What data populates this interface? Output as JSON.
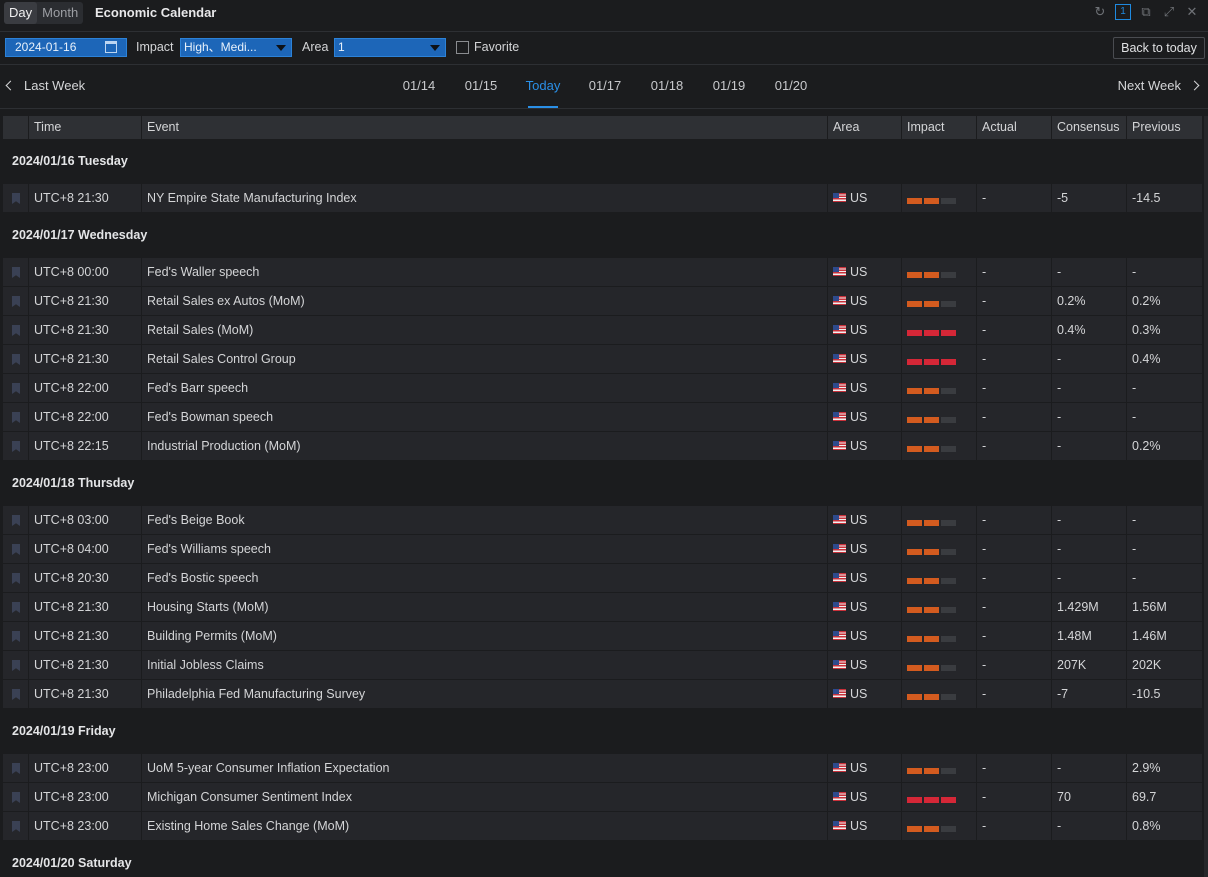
{
  "titlebar": {
    "tab_day": "Day",
    "tab_month": "Month",
    "title": "Economic Calendar",
    "window_badge": "1"
  },
  "filters": {
    "date": "2024-01-16",
    "impact_label": "Impact",
    "impact_value": "High、Medi...",
    "area_label": "Area",
    "area_value": "1",
    "favorite_label": "Favorite",
    "back_to_today": "Back to today"
  },
  "week_nav": {
    "prev": "Last Week",
    "next": "Next Week",
    "days": [
      "01/14",
      "01/15",
      "Today",
      "01/17",
      "01/18",
      "01/19",
      "01/20"
    ],
    "active_day": "Today"
  },
  "columns": {
    "time": "Time",
    "event": "Event",
    "area": "Area",
    "impact": "Impact",
    "actual": "Actual",
    "consensus": "Consensus",
    "previous": "Previous"
  },
  "colors": {
    "accent": "#2a8fe6",
    "impact_medium": "#d35b1f",
    "impact_high": "#d52737"
  },
  "groups": [
    {
      "date": "2024/01/16 Tuesday",
      "rows": [
        {
          "time": "UTC+8 21:30",
          "event": "NY Empire State Manufacturing Index",
          "area": "US",
          "impact": 2,
          "actual": "-",
          "consensus": "-5",
          "previous": "-14.5"
        }
      ]
    },
    {
      "date": "2024/01/17 Wednesday",
      "rows": [
        {
          "time": "UTC+8 00:00",
          "event": "Fed's Waller speech",
          "area": "US",
          "impact": 2,
          "actual": "-",
          "consensus": "-",
          "previous": "-"
        },
        {
          "time": "UTC+8 21:30",
          "event": "Retail Sales ex Autos (MoM)",
          "area": "US",
          "impact": 2,
          "actual": "-",
          "consensus": "0.2%",
          "previous": "0.2%"
        },
        {
          "time": "UTC+8 21:30",
          "event": "Retail Sales (MoM)",
          "area": "US",
          "impact": 3,
          "actual": "-",
          "consensus": "0.4%",
          "previous": "0.3%"
        },
        {
          "time": "UTC+8 21:30",
          "event": "Retail Sales Control Group",
          "area": "US",
          "impact": 3,
          "actual": "-",
          "consensus": "-",
          "previous": "0.4%"
        },
        {
          "time": "UTC+8 22:00",
          "event": "Fed's Barr speech",
          "area": "US",
          "impact": 2,
          "actual": "-",
          "consensus": "-",
          "previous": "-"
        },
        {
          "time": "UTC+8 22:00",
          "event": "Fed's Bowman speech",
          "area": "US",
          "impact": 2,
          "actual": "-",
          "consensus": "-",
          "previous": "-"
        },
        {
          "time": "UTC+8 22:15",
          "event": "Industrial Production (MoM)",
          "area": "US",
          "impact": 2,
          "actual": "-",
          "consensus": "-",
          "previous": "0.2%"
        }
      ]
    },
    {
      "date": "2024/01/18 Thursday",
      "rows": [
        {
          "time": "UTC+8 03:00",
          "event": "Fed's Beige Book",
          "area": "US",
          "impact": 2,
          "actual": "-",
          "consensus": "-",
          "previous": "-"
        },
        {
          "time": "UTC+8 04:00",
          "event": "Fed's Williams speech",
          "area": "US",
          "impact": 2,
          "actual": "-",
          "consensus": "-",
          "previous": "-"
        },
        {
          "time": "UTC+8 20:30",
          "event": "Fed's Bostic speech",
          "area": "US",
          "impact": 2,
          "actual": "-",
          "consensus": "-",
          "previous": "-"
        },
        {
          "time": "UTC+8 21:30",
          "event": "Housing Starts (MoM)",
          "area": "US",
          "impact": 2,
          "actual": "-",
          "consensus": "1.429M",
          "previous": "1.56M"
        },
        {
          "time": "UTC+8 21:30",
          "event": "Building Permits (MoM)",
          "area": "US",
          "impact": 2,
          "actual": "-",
          "consensus": "1.48M",
          "previous": "1.46M"
        },
        {
          "time": "UTC+8 21:30",
          "event": "Initial Jobless Claims",
          "area": "US",
          "impact": 2,
          "actual": "-",
          "consensus": "207K",
          "previous": "202K"
        },
        {
          "time": "UTC+8 21:30",
          "event": "Philadelphia Fed Manufacturing Survey",
          "area": "US",
          "impact": 2,
          "actual": "-",
          "consensus": "-7",
          "previous": "-10.5"
        }
      ]
    },
    {
      "date": "2024/01/19 Friday",
      "rows": [
        {
          "time": "UTC+8 23:00",
          "event": "UoM 5-year Consumer Inflation Expectation",
          "area": "US",
          "impact": 2,
          "actual": "-",
          "consensus": "-",
          "previous": "2.9%"
        },
        {
          "time": "UTC+8 23:00",
          "event": "Michigan Consumer Sentiment Index",
          "area": "US",
          "impact": 3,
          "actual": "-",
          "consensus": "70",
          "previous": "69.7"
        },
        {
          "time": "UTC+8 23:00",
          "event": "Existing Home Sales Change (MoM)",
          "area": "US",
          "impact": 2,
          "actual": "-",
          "consensus": "-",
          "previous": "0.8%"
        }
      ]
    },
    {
      "date": "2024/01/20 Saturday",
      "rows": []
    }
  ]
}
